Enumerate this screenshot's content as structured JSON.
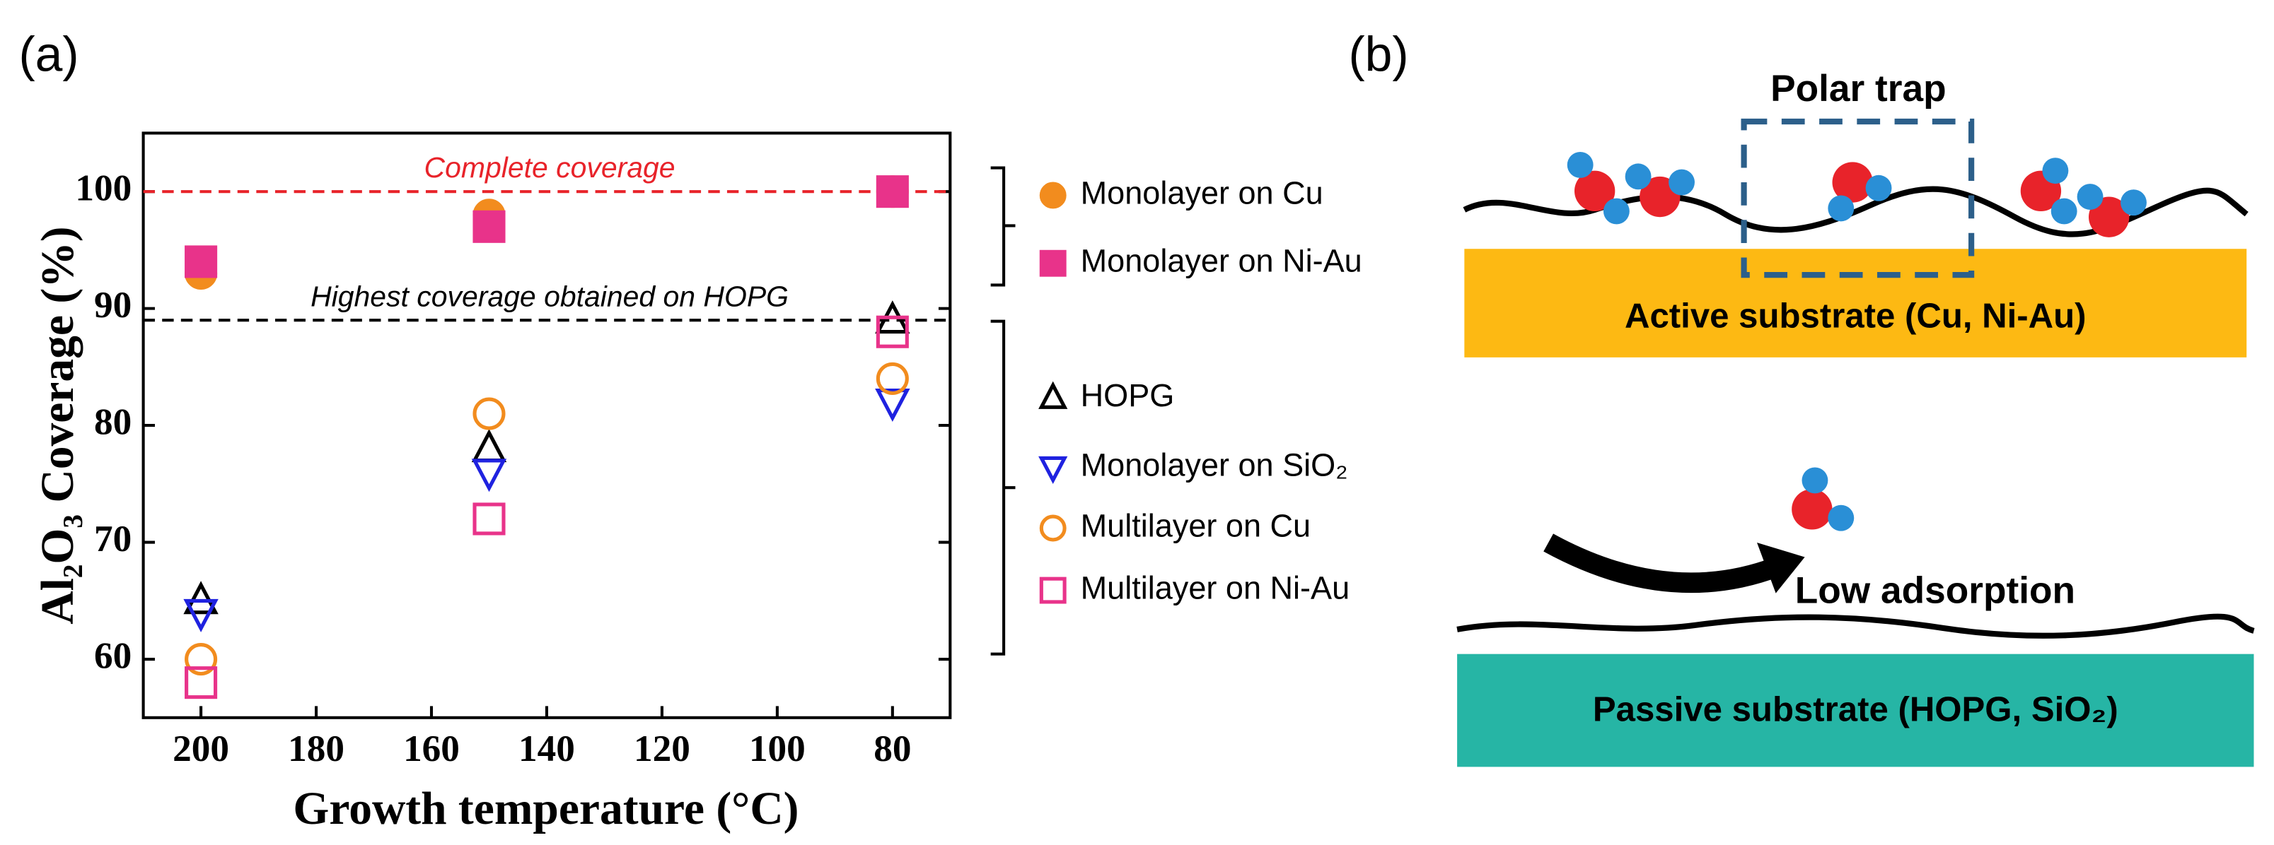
{
  "panel_labels": [
    "(a)",
    "(b)"
  ],
  "chart_data": {
    "type": "scatter",
    "xlabel": "Growth temperature (°C)",
    "ylabel": "Al₂O₃ Coverage (%)",
    "x": [
      200,
      150,
      80
    ],
    "xlim": [
      210,
      70
    ],
    "xticks": [
      200,
      180,
      160,
      140,
      120,
      100,
      80
    ],
    "ylim": [
      55,
      105
    ],
    "yticks": [
      60,
      70,
      80,
      90,
      100
    ],
    "hlines": [
      {
        "value": 100,
        "label": "Complete coverage",
        "color": "#e8232a"
      },
      {
        "value": 89,
        "label": "Highest coverage obtained on HOPG",
        "color": "#000000"
      }
    ],
    "series": [
      {
        "name": "Monolayer on Cu",
        "color": "#f28c1e",
        "marker": "circle",
        "filled": true,
        "values": [
          93,
          98,
          100
        ]
      },
      {
        "name": "Monolayer on Ni-Au",
        "color": "#e8338a",
        "marker": "square",
        "filled": true,
        "values": [
          94,
          97,
          100
        ]
      },
      {
        "name": "HOPG",
        "color": "#000000",
        "marker": "triangle-up",
        "filled": false,
        "values": [
          65,
          78,
          89
        ]
      },
      {
        "name": "Monolayer on SiO₂",
        "color": "#1f22e0",
        "marker": "triangle-down",
        "filled": false,
        "values": [
          64,
          76,
          82
        ]
      },
      {
        "name": "Multilayer on Cu",
        "color": "#f28c1e",
        "marker": "circle",
        "filled": false,
        "values": [
          60,
          81,
          84
        ]
      },
      {
        "name": "Multilayer on Ni-Au",
        "color": "#e8338a",
        "marker": "square",
        "filled": false,
        "values": [
          58,
          72,
          88
        ]
      }
    ]
  },
  "diagram": {
    "trap_label": "Polar trap",
    "active_substrate": "Active substrate (Cu, Ni-Au)",
    "adsorption_label": "Low adsorption",
    "passive_substrate": "Passive substrate (HOPG, SiO₂)"
  }
}
